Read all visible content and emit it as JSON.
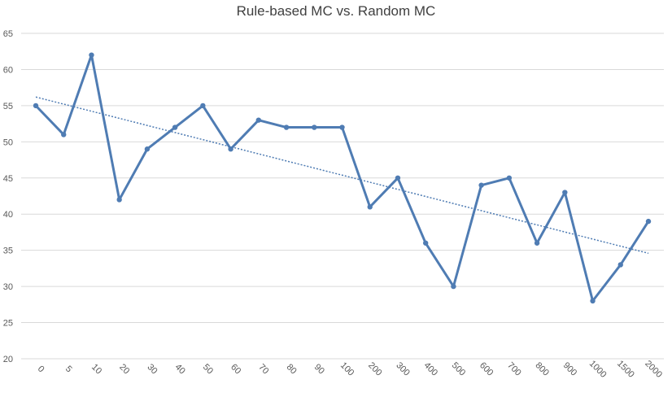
{
  "chart_data": {
    "type": "line",
    "title": "Rule-based MC vs. Random MC",
    "xlabel": "",
    "ylabel": "",
    "categories": [
      "0",
      "5",
      "10",
      "20",
      "30",
      "40",
      "50",
      "60",
      "70",
      "80",
      "90",
      "100",
      "200",
      "300",
      "400",
      "500",
      "600",
      "700",
      "800",
      "900",
      "1000",
      "1500",
      "2000"
    ],
    "series": [
      {
        "values": [
          55,
          51,
          62,
          42,
          49,
          52,
          55,
          49,
          53,
          52,
          52,
          52,
          41,
          45,
          36,
          30,
          44,
          45,
          36,
          43,
          28,
          33,
          39
        ],
        "color": "#4F7CB3"
      }
    ],
    "trendline": {
      "type": "linear",
      "style": "dotted",
      "color": "#4F7CB3"
    },
    "ylim": [
      20,
      65
    ],
    "yticks": [
      20,
      25,
      30,
      35,
      40,
      45,
      50,
      55,
      60,
      65
    ],
    "grid": true,
    "legend": "none"
  }
}
